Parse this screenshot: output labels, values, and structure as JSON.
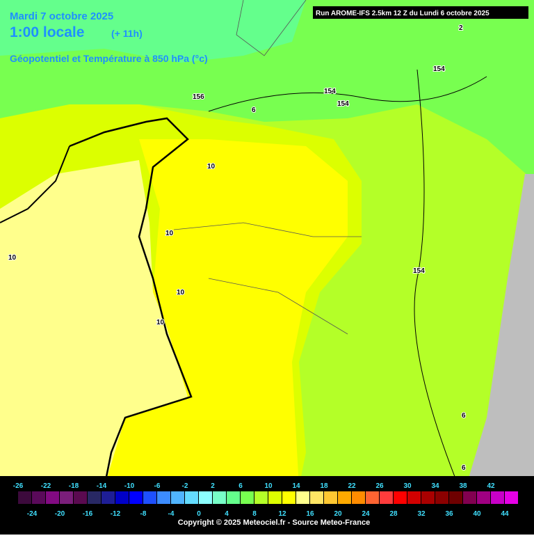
{
  "header": {
    "date": "Mardi 7 octobre 2025",
    "time": "1:00 locale",
    "offset": "(+ 11h)",
    "subtitle": "Géopotentiel et Température à 850 hPa (°c)"
  },
  "run": "Run AROME-IFS 2.5km 12 Z du Lundi 6 octobre 2025",
  "contour_labels": [
    "2",
    "154",
    "154",
    "154",
    "156",
    "6",
    "10",
    "10",
    "10",
    "10",
    "10",
    "154",
    "6",
    "6"
  ],
  "colorbar": {
    "levels": [
      -26,
      -24,
      -22,
      -20,
      -18,
      -16,
      -14,
      -12,
      -10,
      -8,
      -6,
      -4,
      -2,
      0,
      2,
      4,
      6,
      8,
      10,
      12,
      14,
      16,
      18,
      20,
      22,
      24,
      26,
      28,
      30,
      32,
      34,
      36,
      38,
      40,
      42,
      44
    ],
    "colors": [
      "#3c0a3c",
      "#5a0a5a",
      "#820a82",
      "#7a1e7a",
      "#5a0a50",
      "#282864",
      "#1e1e96",
      "#0000c8",
      "#0000ff",
      "#1e50ff",
      "#3c8cff",
      "#50b4ff",
      "#64dcff",
      "#8cffff",
      "#78ffc8",
      "#64ff8c",
      "#78ff50",
      "#b4ff28",
      "#dcff00",
      "#ffff00",
      "#ffff8c",
      "#ffe664",
      "#ffc832",
      "#ffaa00",
      "#ff8c00",
      "#ff6432",
      "#ff3c3c",
      "#ff0000",
      "#d20000",
      "#aa0000",
      "#8c0000",
      "#6e0000",
      "#820050",
      "#a00082",
      "#c800c8",
      "#e600e6",
      "#ff00ff",
      "#ff96ff"
    ]
  },
  "copyright": "Copyright © 2025 Meteociel.fr - Source Meteo-France"
}
